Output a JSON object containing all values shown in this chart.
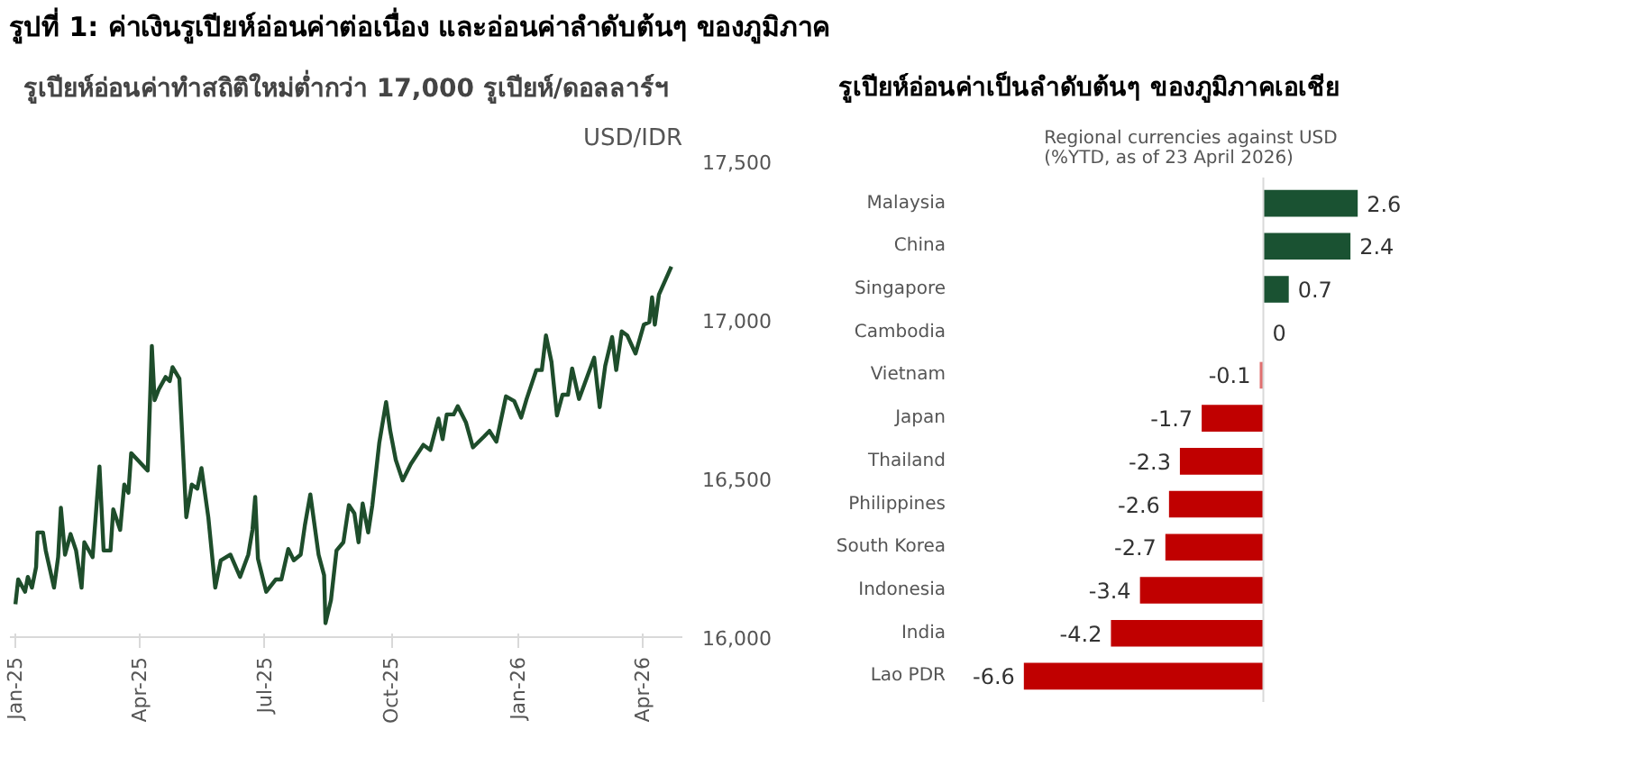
{
  "chart_data": [
    {
      "type": "line",
      "title": "รูปที่ 1: ค่าเงินรูเปียห์อ่อนค่าต่อเนื่อง และอ่อนค่าลำดับต้นๆ ของภูมิภาค",
      "subtitle": "รูเปียห์อ่อนค่าทำสถิติใหม่ต่ำกว่า 17,000 รูเปียห์/ดอลลาร์ฯ",
      "ylabel": "USD/IDR",
      "x": [
        "2025-01-01",
        "2025-01-03",
        "2025-01-08",
        "2025-01-10",
        "2025-01-13",
        "2025-01-16",
        "2025-01-17",
        "2025-01-21",
        "2025-01-23",
        "2025-01-29",
        "2025-02-01",
        "2025-02-03",
        "2025-02-06",
        "2025-02-10",
        "2025-02-14",
        "2025-02-18",
        "2025-02-20",
        "2025-02-26",
        "2025-03-03",
        "2025-03-06",
        "2025-03-11",
        "2025-03-13",
        "2025-03-18",
        "2025-03-21",
        "2025-03-24",
        "2025-03-26",
        "2025-04-07",
        "2025-04-10",
        "2025-04-12",
        "2025-04-15",
        "2025-04-20",
        "2025-04-23",
        "2025-04-25",
        "2025-04-30",
        "2025-05-05",
        "2025-05-09",
        "2025-05-13",
        "2025-05-16",
        "2025-05-21",
        "2025-05-26",
        "2025-05-30",
        "2025-06-06",
        "2025-06-13",
        "2025-06-19",
        "2025-06-22",
        "2025-06-24",
        "2025-06-26",
        "2025-07-02",
        "2025-07-09",
        "2025-07-13",
        "2025-07-18",
        "2025-07-22",
        "2025-07-27",
        "2025-07-30",
        "2025-08-03",
        "2025-08-09",
        "2025-08-13",
        "2025-08-14",
        "2025-08-18",
        "2025-08-22",
        "2025-08-27",
        "2025-08-31",
        "2025-09-04",
        "2025-09-07",
        "2025-09-10",
        "2025-09-14",
        "2025-09-17",
        "2025-09-22",
        "2025-09-27",
        "2025-09-30",
        "2025-10-04",
        "2025-10-09",
        "2025-10-15",
        "2025-10-24",
        "2025-10-29",
        "2025-11-04",
        "2025-11-07",
        "2025-11-10",
        "2025-11-15",
        "2025-11-18",
        "2025-11-24",
        "2025-11-29",
        "2025-12-07",
        "2025-12-11",
        "2025-12-16",
        "2025-12-23",
        "2025-12-29",
        "2026-01-03",
        "2026-01-07",
        "2026-01-14",
        "2026-01-18",
        "2026-01-21",
        "2026-01-25",
        "2026-01-29",
        "2026-02-02",
        "2026-02-06",
        "2026-02-09",
        "2026-02-14",
        "2026-02-20",
        "2026-02-25",
        "2026-03-01",
        "2026-03-05",
        "2026-03-10",
        "2026-03-13",
        "2026-03-17",
        "2026-03-21",
        "2026-03-27",
        "2026-04-02",
        "2026-04-06",
        "2026-04-08",
        "2026-04-10",
        "2026-04-13",
        "2026-04-22"
      ],
      "series": [
        {
          "color": "#1e4d2b",
          "values": [
            16104,
            16182,
            16143,
            16190,
            16156,
            16221,
            16330,
            16330,
            16273,
            16156,
            16252,
            16408,
            16260,
            16325,
            16273,
            16156,
            16299,
            16252,
            16538,
            16273,
            16273,
            16403,
            16338,
            16481,
            16455,
            16580,
            16525,
            16918,
            16747,
            16781,
            16820,
            16807,
            16851,
            16815,
            16378,
            16481,
            16468,
            16533,
            16377,
            16156,
            16242,
            16260,
            16190,
            16260,
            16338,
            16442,
            16247,
            16143,
            16182,
            16182,
            16278,
            16242,
            16260,
            16351,
            16450,
            16260,
            16195,
            16044,
            16117,
            16273,
            16299,
            16416,
            16390,
            16299,
            16421,
            16330,
            16416,
            16611,
            16741,
            16650,
            16559,
            16494,
            16546,
            16606,
            16590,
            16689,
            16624,
            16702,
            16702,
            16728,
            16676,
            16598,
            16632,
            16650,
            16616,
            16759,
            16744,
            16692,
            16751,
            16842,
            16842,
            16951,
            16868,
            16699,
            16764,
            16764,
            16847,
            16751,
            16822,
            16881,
            16725,
            16855,
            16946,
            16842,
            16964,
            16951,
            16894,
            16985,
            16993,
            17071,
            16985,
            17080,
            17168
          ]
        }
      ],
      "xlim": [
        "2024-12-28",
        "2026-04-30"
      ],
      "xticks": [
        {
          "value": "2025-01-01",
          "label": "Jan-25"
        },
        {
          "value": "2025-04-01",
          "label": "Apr-25"
        },
        {
          "value": "2025-07-01",
          "label": "Jul-25"
        },
        {
          "value": "2025-10-01",
          "label": "Oct-25"
        },
        {
          "value": "2026-01-01",
          "label": "Jan-26"
        },
        {
          "value": "2026-04-01",
          "label": "Apr-26"
        }
      ],
      "ylim": [
        16000,
        17500
      ],
      "yticks": [
        {
          "value": 16000,
          "label": "16,000"
        },
        {
          "value": 16500,
          "label": "16,500"
        },
        {
          "value": 17000,
          "label": "17,000"
        },
        {
          "value": 17500,
          "label": "17,500"
        }
      ],
      "grid": false,
      "line_style": "solid"
    },
    {
      "type": "bar",
      "orientation": "horizontal",
      "title": "รูเปียห์อ่อนค่าเป็นลำดับต้นๆ ของภูมิภาคเอเชีย",
      "subtitle": "Regional currencies against USD\n(%YTD, as of 23 April 2026)",
      "categories": [
        "Malaysia",
        "China",
        "Singapore",
        "Cambodia",
        "Vietnam",
        "Japan",
        "Thailand",
        "Philippines",
        "South Korea",
        "Indonesia",
        "India",
        "Lao PDR"
      ],
      "values": [
        2.6,
        2.4,
        0.7,
        0,
        -0.1,
        -1.7,
        -2.3,
        -2.6,
        -2.7,
        -3.4,
        -4.2,
        -6.6
      ],
      "colors": [
        "#1a5232",
        "#1a5232",
        "#1a5232",
        "#1a5232",
        "#e07070",
        "#c00000",
        "#c00000",
        "#c00000",
        "#c00000",
        "#c00000",
        "#c00000",
        "#c00000"
      ],
      "data_labels": true,
      "tick_labels": "y",
      "grid": false,
      "ref_lines": [
        {
          "axis": "x",
          "value": 0,
          "label": null,
          "color": "#d9d9d9"
        }
      ]
    }
  ]
}
